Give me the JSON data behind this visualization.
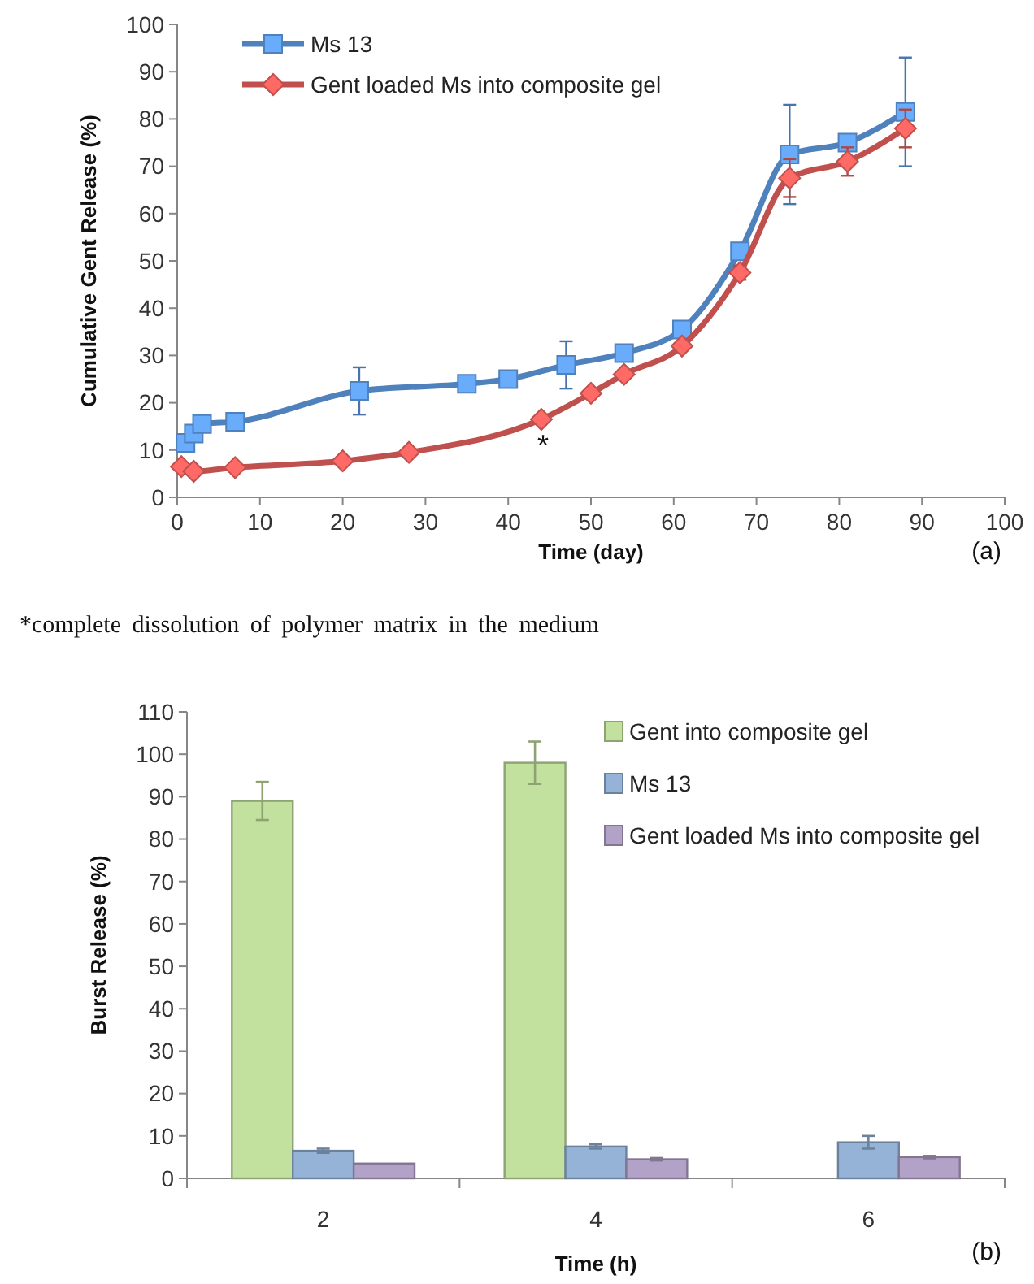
{
  "chart_data": [
    {
      "type": "line",
      "xlabel": "Time (day)",
      "ylabel": "Cumulative Gent Release (%)",
      "xlim": [
        0,
        100
      ],
      "xticks": [
        0,
        10,
        20,
        30,
        40,
        50,
        60,
        70,
        80,
        90,
        100
      ],
      "ylim": [
        0,
        100
      ],
      "yticks": [
        0,
        10,
        20,
        30,
        40,
        50,
        60,
        70,
        80,
        90,
        100
      ],
      "grid": false,
      "legend": "top left",
      "series": [
        {
          "name": "Ms 13",
          "color": "#4f81bd",
          "marker": "square",
          "x": [
            1,
            2,
            3,
            7,
            22,
            35,
            40,
            47,
            54,
            61,
            68,
            74,
            81,
            88
          ],
          "values": [
            11.5,
            13.5,
            15.5,
            16,
            22.5,
            24,
            25,
            28,
            30.5,
            35.5,
            52,
            72.5,
            75,
            81.5
          ],
          "errors": [
            null,
            null,
            null,
            null,
            5,
            null,
            null,
            5,
            null,
            null,
            null,
            10.5,
            null,
            11.5
          ]
        },
        {
          "name": "Gent loaded Ms into composite gel",
          "color": "#c0504d",
          "marker": "diamond",
          "x": [
            0.5,
            2,
            7,
            20,
            28,
            44,
            50,
            54,
            61,
            68,
            74,
            81,
            88
          ],
          "values": [
            6.5,
            5.5,
            6.3,
            7.7,
            9.5,
            16.5,
            22,
            26,
            32,
            47.5,
            67.5,
            71,
            78
          ],
          "errors": [
            null,
            null,
            null,
            null,
            null,
            null,
            null,
            null,
            null,
            1.5,
            4,
            3,
            4
          ]
        }
      ],
      "annotations": [
        "*",
        "(a)",
        "*complete dissolution of polymer matrix in the medium"
      ]
    },
    {
      "type": "bar",
      "xlabel": "Time (h)",
      "ylabel": "Burst Release (%)",
      "categories": [
        "2",
        "4",
        "6"
      ],
      "ylim": [
        0,
        110
      ],
      "yticks": [
        0,
        10,
        20,
        30,
        40,
        50,
        60,
        70,
        80,
        90,
        100,
        110
      ],
      "grid": false,
      "legend": "top right",
      "series": [
        {
          "name": "Gent into composite gel",
          "color": "#c3e19e",
          "values": [
            89,
            98,
            null
          ],
          "errors": [
            4.5,
            5,
            null
          ]
        },
        {
          "name": "Ms 13",
          "color": "#95b3d7",
          "values": [
            6.5,
            7.5,
            8.5
          ],
          "errors": [
            0.5,
            0.5,
            1.5
          ]
        },
        {
          "name": "Gent loaded Ms into composite gel",
          "color": "#b3a2c7",
          "values": [
            3.5,
            4.5,
            5
          ],
          "errors": [
            null,
            0.3,
            0.3
          ]
        }
      ],
      "annotations": [
        "(b)"
      ]
    }
  ]
}
